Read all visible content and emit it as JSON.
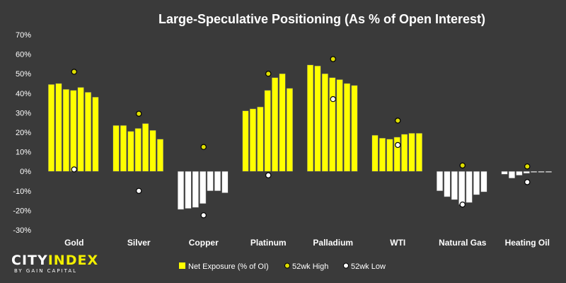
{
  "chart_data": {
    "type": "bar",
    "title": "Large-Speculative Positioning (As % of Open Interest)",
    "categories": [
      "Gold",
      "Silver",
      "Copper",
      "Platinum",
      "Palladium",
      "WTI",
      "Natural Gas",
      "Heating Oil"
    ],
    "ylim": [
      -30,
      70
    ],
    "yticks": [
      "70%",
      "60%",
      "50%",
      "40%",
      "30%",
      "20%",
      "10%",
      "0%",
      "-10%",
      "-20%",
      "-30%"
    ],
    "ytick_values": [
      70,
      60,
      50,
      40,
      30,
      20,
      10,
      0,
      -10,
      -20,
      -30
    ],
    "grid": false,
    "legend_position": "bottom",
    "series": [
      {
        "name": "Net Exposure (% of OI)",
        "kind": "bar",
        "values": [
          [
            44.5,
            45,
            42,
            41.5,
            43,
            40.5,
            38
          ],
          [
            23.5,
            23.5,
            20.5,
            22,
            24.5,
            21,
            16.5
          ],
          [
            -19.5,
            -19,
            -18.5,
            -16.5,
            -10,
            -10,
            -11
          ],
          [
            31,
            32,
            33,
            41.5,
            48,
            50,
            42.5
          ],
          [
            54.5,
            54,
            50,
            48,
            47,
            45,
            44
          ],
          [
            18.5,
            17,
            16.5,
            17.5,
            19,
            19.5,
            19.5
          ],
          [
            -10,
            -13,
            -14.5,
            -17,
            -16,
            -12,
            -10.5
          ],
          [
            -1.5,
            -3.5,
            -2,
            -1,
            -0.5,
            -0.5,
            -0.5
          ]
        ]
      },
      {
        "name": "52wk High",
        "kind": "marker",
        "values": [
          51,
          29.5,
          12.5,
          50,
          57.5,
          26,
          3,
          2.5
        ]
      },
      {
        "name": "52wk Low",
        "kind": "marker",
        "values": [
          1,
          -10,
          -22.5,
          -2,
          37,
          13.5,
          -17,
          -5.5
        ]
      }
    ],
    "colors": {
      "background": "#3a3a3a",
      "net_exposure_positive": "#ffff00",
      "net_exposure_negative": "#ffffff",
      "bar_outline": "#666666",
      "high_marker": "#dede00",
      "low_marker": "#ffffff",
      "marker_outline": "#000000"
    }
  },
  "legend": {
    "net": "Net Exposure (% of OI)",
    "high": "52wk High",
    "low": "52wk Low"
  },
  "logo": {
    "part1": "CITY",
    "part2": "INDEX",
    "sub": "BY GAIN CAPITAL"
  }
}
